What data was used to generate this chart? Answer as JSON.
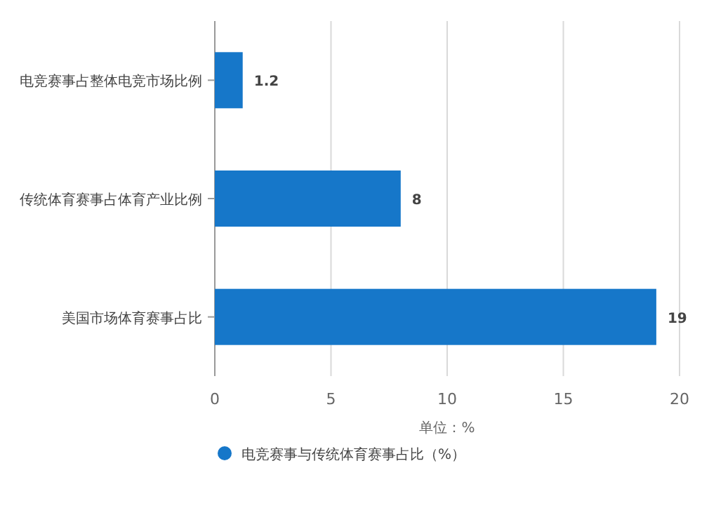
{
  "chart_data": {
    "type": "bar",
    "orientation": "horizontal",
    "categories": [
      "电竞赛事占整体电竞市场比例",
      "传统体育赛事占体育产业比例",
      "美国市场体育赛事占比"
    ],
    "series": [
      {
        "name": "电竞赛事与传统体育赛事占比（%）",
        "color": "#1677c9",
        "values": [
          1.2,
          8,
          19
        ]
      }
    ],
    "xlim": [
      0,
      20
    ],
    "xticks": [
      0,
      5,
      10,
      15,
      20
    ],
    "xlabel": "单位：%",
    "grid": "x",
    "data_labels": true,
    "legend": "bottom"
  }
}
